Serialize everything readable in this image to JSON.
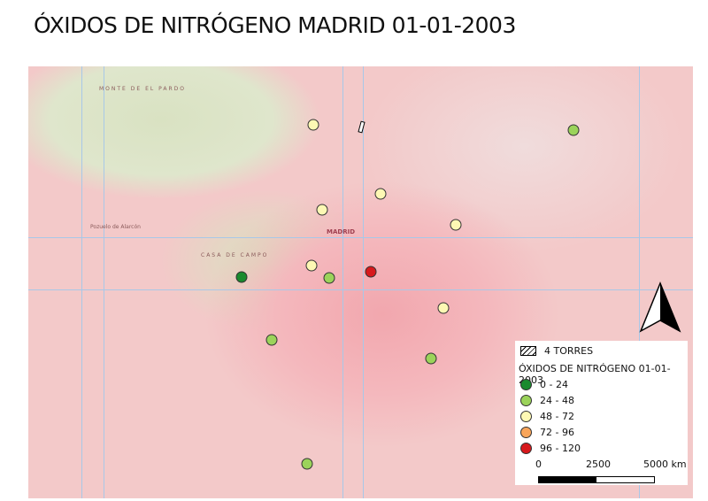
{
  "title": "ÓXIDOS DE NITRÓGENO MADRID 01-01-2003",
  "map_labels": [
    "MONTE DE EL PARDO",
    "MADRID",
    "CASA DE CAMPO",
    "Pozuelo de Alarcón"
  ],
  "legend": {
    "torres_label": "4 TORRES",
    "layer_title": "ÓXIDOS DE NITRÓGENO 01-01-2003",
    "classes": [
      {
        "label": "0 - 24",
        "color": "#1a8a2e"
      },
      {
        "label": "24 - 48",
        "color": "#9bd35a"
      },
      {
        "label": "48 - 72",
        "color": "#fdf8b4"
      },
      {
        "label": "72 - 96",
        "color": "#f8a55a"
      },
      {
        "label": "96 - 120",
        "color": "#d7191c"
      }
    ]
  },
  "stations": [
    2,
    1,
    2,
    2,
    2,
    2,
    0,
    1,
    4,
    2,
    1,
    1,
    1
  ],
  "scale": {
    "labels": [
      "0",
      "2500",
      "5000 km"
    ]
  },
  "north_arrow": "north-arrow-icon"
}
